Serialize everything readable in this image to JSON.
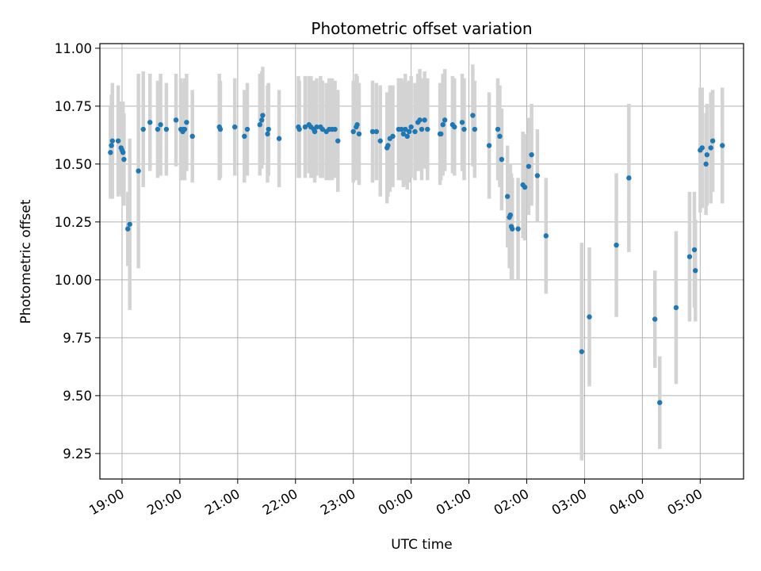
{
  "chart_data": {
    "type": "scatter",
    "title": "Photometric offset variation",
    "xlabel": "UTC time",
    "ylabel": "Photometric offset",
    "grid": true,
    "x_tick_labels": [
      "19:00",
      "20:00",
      "21:00",
      "22:00",
      "23:00",
      "00:00",
      "01:00",
      "02:00",
      "03:00",
      "04:00",
      "05:00"
    ],
    "y_tick_labels": [
      "9.25",
      "9.50",
      "9.75",
      "10.00",
      "10.25",
      "10.50",
      "10.75",
      "11.00"
    ],
    "ylim": [
      9.14,
      11.02
    ],
    "xlim": [
      "18:37",
      "05:45"
    ],
    "colors": {
      "marker": "#1f77b4",
      "errorbar": "#d3d3d3",
      "grid": "#b0b0b0"
    },
    "series": [
      {
        "points": [
          [
            "18:48",
            10.55,
            0.2
          ],
          [
            "18:49",
            10.58,
            0.22
          ],
          [
            "18:50",
            10.6,
            0.25
          ],
          [
            "18:56",
            10.6,
            0.24
          ],
          [
            "18:59",
            10.57,
            0.2
          ],
          [
            "19:00",
            10.56,
            0.2
          ],
          [
            "19:01",
            10.55,
            0.22
          ],
          [
            "19:02",
            10.52,
            0.2
          ],
          [
            "19:06",
            10.22,
            0.16
          ],
          [
            "19:08",
            10.24,
            0.37
          ],
          [
            "19:17",
            10.47,
            0.42
          ],
          [
            "19:22",
            10.65,
            0.25
          ],
          [
            "19:29",
            10.68,
            0.21
          ],
          [
            "19:37",
            10.65,
            0.21
          ],
          [
            "19:40",
            10.67,
            0.22
          ],
          [
            "19:46",
            10.65,
            0.2
          ],
          [
            "19:56",
            10.69,
            0.2
          ],
          [
            "20:01",
            10.65,
            0.22
          ],
          [
            "20:03",
            10.64,
            0.21
          ],
          [
            "20:04",
            10.65,
            0.2
          ],
          [
            "20:05",
            10.65,
            0.22
          ],
          [
            "20:07",
            10.68,
            0.21
          ],
          [
            "20:13",
            10.62,
            0.2
          ],
          [
            "20:41",
            10.66,
            0.23
          ],
          [
            "20:42",
            10.65,
            0.21
          ],
          [
            "20:57",
            10.66,
            0.21
          ],
          [
            "21:07",
            10.62,
            0.2
          ],
          [
            "21:10",
            10.65,
            0.2
          ],
          [
            "21:23",
            10.67,
            0.22
          ],
          [
            "21:25",
            10.69,
            0.21
          ],
          [
            "21:26",
            10.71,
            0.21
          ],
          [
            "21:31",
            10.63,
            0.21
          ],
          [
            "21:32",
            10.65,
            0.2
          ],
          [
            "21:43",
            10.61,
            0.21
          ],
          [
            "22:03",
            10.66,
            0.22
          ],
          [
            "22:04",
            10.65,
            0.21
          ],
          [
            "22:10",
            10.66,
            0.22
          ],
          [
            "22:14",
            10.67,
            0.21
          ],
          [
            "22:16",
            10.66,
            0.22
          ],
          [
            "22:19",
            10.65,
            0.21
          ],
          [
            "22:20",
            10.64,
            0.22
          ],
          [
            "22:22",
            10.66,
            0.21
          ],
          [
            "22:26",
            10.66,
            0.22
          ],
          [
            "22:28",
            10.65,
            0.21
          ],
          [
            "22:32",
            10.64,
            0.21
          ],
          [
            "22:35",
            10.65,
            0.22
          ],
          [
            "22:38",
            10.65,
            0.22
          ],
          [
            "22:41",
            10.65,
            0.21
          ],
          [
            "22:44",
            10.6,
            0.22
          ],
          [
            "23:00",
            10.64,
            0.22
          ],
          [
            "23:03",
            10.66,
            0.23
          ],
          [
            "23:04",
            10.67,
            0.21
          ],
          [
            "23:06",
            10.63,
            0.22
          ],
          [
            "23:20",
            10.64,
            0.22
          ],
          [
            "23:24",
            10.64,
            0.21
          ],
          [
            "23:28",
            10.6,
            0.24
          ],
          [
            "23:35",
            10.57,
            0.24
          ],
          [
            "23:36",
            10.58,
            0.22
          ],
          [
            "23:38",
            10.61,
            0.23
          ],
          [
            "23:41",
            10.62,
            0.22
          ],
          [
            "23:47",
            10.65,
            0.22
          ],
          [
            "23:50",
            10.65,
            0.22
          ],
          [
            "23:52",
            10.63,
            0.23
          ],
          [
            "23:54",
            10.65,
            0.24
          ],
          [
            "23:56",
            10.62,
            0.23
          ],
          [
            "23:58",
            10.64,
            0.22
          ],
          [
            "00:00",
            10.66,
            0.22
          ],
          [
            "00:04",
            10.64,
            0.21
          ],
          [
            "00:07",
            10.68,
            0.21
          ],
          [
            "00:09",
            10.69,
            0.22
          ],
          [
            "00:11",
            10.65,
            0.22
          ],
          [
            "00:14",
            10.69,
            0.21
          ],
          [
            "00:17",
            10.65,
            0.22
          ],
          [
            "00:30",
            10.63,
            0.22
          ],
          [
            "00:31",
            10.63,
            0.2
          ],
          [
            "00:33",
            10.67,
            0.22
          ],
          [
            "00:35",
            10.69,
            0.22
          ],
          [
            "00:43",
            10.67,
            0.21
          ],
          [
            "00:45",
            10.66,
            0.21
          ],
          [
            "00:53",
            10.68,
            0.21
          ],
          [
            "00:55",
            10.65,
            0.22
          ],
          [
            "01:04",
            10.71,
            0.22
          ],
          [
            "01:06",
            10.65,
            0.21
          ],
          [
            "01:21",
            10.58,
            0.23
          ],
          [
            "01:30",
            10.65,
            0.22
          ],
          [
            "01:32",
            10.62,
            0.22
          ],
          [
            "01:34",
            10.52,
            0.22
          ],
          [
            "01:40",
            10.36,
            0.22
          ],
          [
            "01:42",
            10.27,
            0.22
          ],
          [
            "01:43",
            10.28,
            0.22
          ],
          [
            "01:44",
            10.23,
            0.23
          ],
          [
            "01:45",
            10.22,
            0.22
          ],
          [
            "01:51",
            10.22,
            0.22
          ],
          [
            "01:56",
            10.41,
            0.23
          ],
          [
            "01:58",
            10.4,
            0.23
          ],
          [
            "02:02",
            10.49,
            0.21
          ],
          [
            "02:05",
            10.54,
            0.22
          ],
          [
            "02:11",
            10.45,
            0.2
          ],
          [
            "02:20",
            10.19,
            0.25
          ],
          [
            "02:57",
            9.69,
            0.47
          ],
          [
            "03:05",
            9.84,
            0.3
          ],
          [
            "03:33",
            10.15,
            0.31
          ],
          [
            "03:46",
            10.44,
            0.32
          ],
          [
            "04:13",
            9.83,
            0.21
          ],
          [
            "04:18",
            9.47,
            0.2
          ],
          [
            "04:35",
            9.88,
            0.33
          ],
          [
            "04:49",
            10.1,
            0.28
          ],
          [
            "04:54",
            10.13,
            0.25
          ],
          [
            "04:55",
            10.04,
            0.22
          ],
          [
            "05:00",
            10.56,
            0.27
          ],
          [
            "05:02",
            10.57,
            0.26
          ],
          [
            "05:06",
            10.5,
            0.22
          ],
          [
            "05:07",
            10.54,
            0.22
          ],
          [
            "05:11",
            10.57,
            0.24
          ],
          [
            "05:13",
            10.6,
            0.22
          ],
          [
            "05:23",
            10.58,
            0.25
          ]
        ]
      }
    ]
  }
}
